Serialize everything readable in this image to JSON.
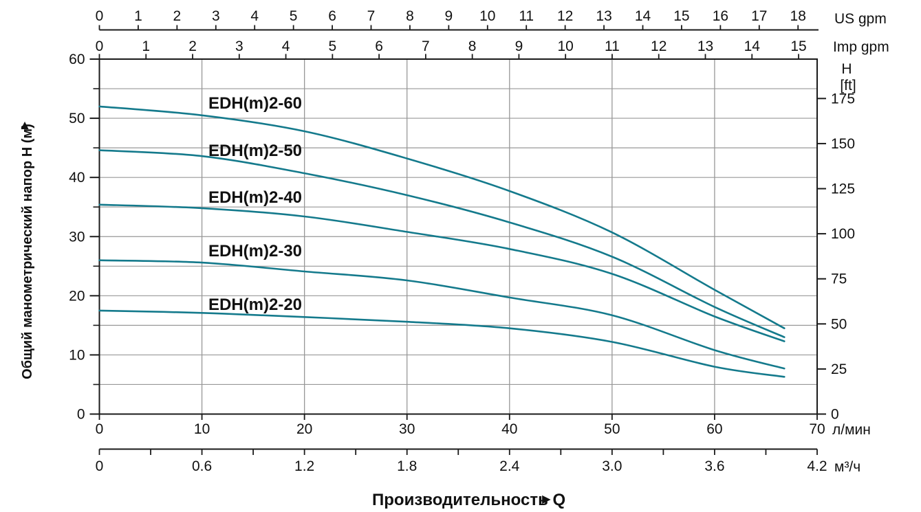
{
  "colors": {
    "curve": "#147a8c",
    "grid": "#979797",
    "axis": "#1a1a1a",
    "text": "#111111"
  },
  "icons": {
    "up_arrow": "▲",
    "right_arrow": "►"
  },
  "chart_data": {
    "type": "line",
    "x_title": "Производительность Q",
    "xlim_lpm": [
      0,
      70
    ],
    "ylim_m": [
      0,
      60
    ],
    "grid": {
      "x_step_lpm": 10,
      "y_step_m": 5,
      "on": true
    },
    "legend_position": "labels-on-chart",
    "x_axes": [
      {
        "id": "us_gpm",
        "label": "US gpm",
        "position": "top-outer",
        "lpm_per_unit": 3.7854,
        "ticks": [
          0,
          1,
          2,
          3,
          4,
          5,
          6,
          7,
          8,
          9,
          10,
          11,
          12,
          13,
          14,
          15,
          16,
          17,
          18
        ]
      },
      {
        "id": "imp_gpm",
        "label": "Imp gpm",
        "position": "top",
        "lpm_per_unit": 4.5461,
        "ticks": [
          0,
          1,
          2,
          3,
          4,
          5,
          6,
          7,
          8,
          9,
          10,
          11,
          12,
          13,
          14,
          15
        ]
      },
      {
        "id": "l_min",
        "label": "л/мин",
        "position": "bottom",
        "lpm_per_unit": 1,
        "ticks": [
          0,
          10,
          20,
          30,
          40,
          50,
          60,
          70
        ]
      },
      {
        "id": "m3_h",
        "label": "м³/ч",
        "position": "bottom-outer",
        "lpm_per_unit": 16.6667,
        "minor_step": 0.3,
        "ticks": [
          "0",
          "0.6",
          "1.2",
          "1.8",
          "2.4",
          "3.0",
          "3.6",
          "4.2"
        ]
      }
    ],
    "y_axes": [
      {
        "id": "h_m",
        "label": "Общий манометрический напор H (м)",
        "position": "left",
        "ticks": [
          0,
          10,
          20,
          30,
          40,
          50,
          60
        ],
        "minor_step": 5
      },
      {
        "id": "h_ft",
        "label_lines": [
          "H",
          "[ft]"
        ],
        "position": "right",
        "m_per_unit": 0.3048,
        "ticks": [
          0,
          25,
          50,
          75,
          100,
          125,
          150,
          175
        ]
      }
    ],
    "series": [
      {
        "name": "EDH(m)2-60",
        "points": [
          [
            0,
            52.0
          ],
          [
            10,
            50.5
          ],
          [
            20,
            47.8
          ],
          [
            30,
            43.2
          ],
          [
            40,
            37.7
          ],
          [
            50,
            30.7
          ],
          [
            60,
            21.0
          ],
          [
            66.8,
            14.5
          ]
        ]
      },
      {
        "name": "EDH(m)2-50",
        "points": [
          [
            0,
            44.6
          ],
          [
            10,
            43.6
          ],
          [
            20,
            40.7
          ],
          [
            30,
            37.0
          ],
          [
            40,
            32.4
          ],
          [
            50,
            26.6
          ],
          [
            60,
            18.1
          ],
          [
            66.8,
            13.0
          ]
        ]
      },
      {
        "name": "EDH(m)2-40",
        "points": [
          [
            0,
            35.4
          ],
          [
            10,
            34.8
          ],
          [
            20,
            33.4
          ],
          [
            30,
            30.8
          ],
          [
            40,
            27.9
          ],
          [
            50,
            23.7
          ],
          [
            60,
            16.5
          ],
          [
            66.8,
            12.3
          ]
        ]
      },
      {
        "name": "EDH(m)2-30",
        "points": [
          [
            0,
            26.0
          ],
          [
            10,
            25.6
          ],
          [
            20,
            24.1
          ],
          [
            30,
            22.6
          ],
          [
            40,
            19.7
          ],
          [
            50,
            16.7
          ],
          [
            60,
            10.8
          ],
          [
            66.8,
            7.7
          ]
        ]
      },
      {
        "name": "EDH(m)2-20",
        "points": [
          [
            0,
            17.5
          ],
          [
            10,
            17.1
          ],
          [
            20,
            16.4
          ],
          [
            30,
            15.6
          ],
          [
            40,
            14.5
          ],
          [
            50,
            12.2
          ],
          [
            60,
            8.0
          ],
          [
            66.8,
            6.3
          ]
        ]
      }
    ]
  }
}
